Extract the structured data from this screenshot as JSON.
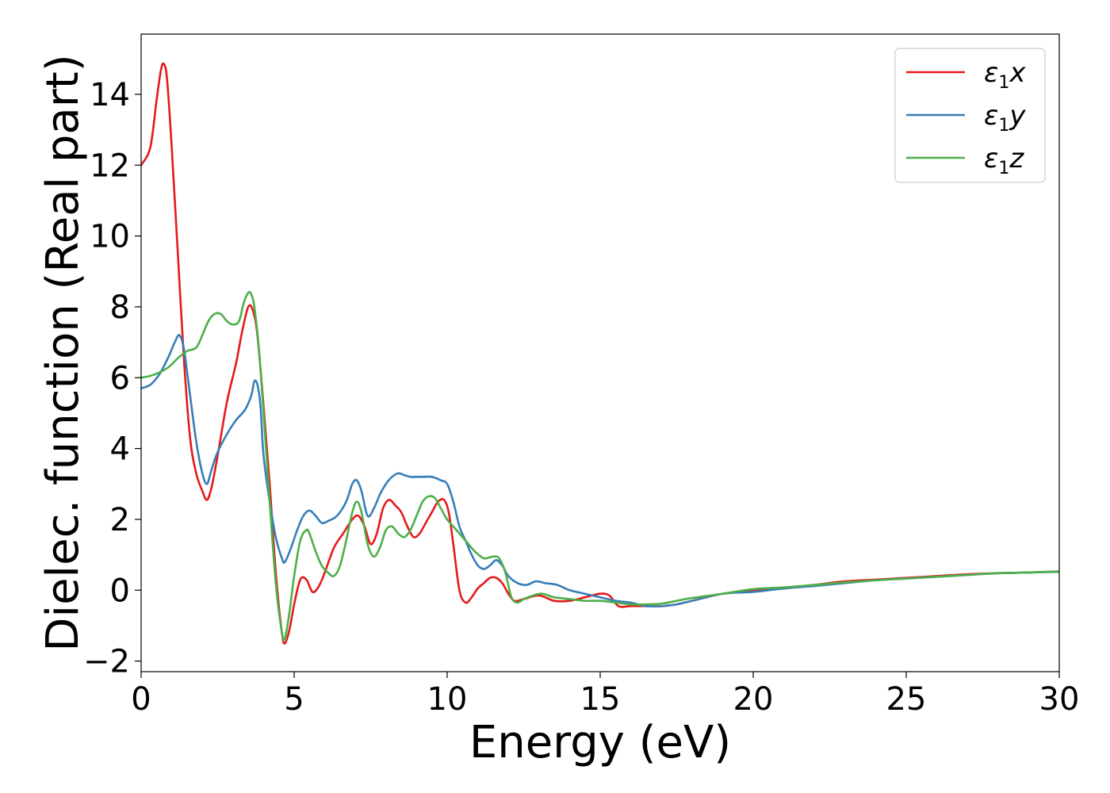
{
  "chart_data": {
    "type": "line",
    "title": "",
    "xlabel": "Energy (eV)",
    "ylabel": "Dielec. function (Real part)",
    "xlim": [
      0,
      30
    ],
    "ylim": [
      -2.3,
      15.7
    ],
    "xticks": [
      0,
      5,
      10,
      15,
      20,
      25,
      30
    ],
    "yticks": [
      -2,
      0,
      2,
      4,
      6,
      8,
      10,
      12,
      14
    ],
    "ytick_labels": [
      "−2",
      "0",
      "2",
      "4",
      "6",
      "8",
      "10",
      "12",
      "14"
    ],
    "grid": false,
    "legend_position": "top-right",
    "series": [
      {
        "name": "ε1x",
        "name_base": "ε",
        "name_sub": "1",
        "name_tail": "x",
        "color": "#e41a1c",
        "x": [
          0,
          0.3,
          0.5,
          0.65,
          0.75,
          0.85,
          1.0,
          1.2,
          1.4,
          1.6,
          1.8,
          2.0,
          2.15,
          2.3,
          2.5,
          2.8,
          3.1,
          3.3,
          3.5,
          3.65,
          3.8,
          4.0,
          4.2,
          4.4,
          4.6,
          4.7,
          4.85,
          5.0,
          5.2,
          5.4,
          5.6,
          5.8,
          6.0,
          6.3,
          6.6,
          6.9,
          7.1,
          7.3,
          7.5,
          7.7,
          7.9,
          8.1,
          8.3,
          8.5,
          8.7,
          8.9,
          9.1,
          9.3,
          9.5,
          9.7,
          9.9,
          10.05,
          10.2,
          10.4,
          10.6,
          10.8,
          11.0,
          11.2,
          11.4,
          11.6,
          11.8,
          12.0,
          12.2,
          12.5,
          13.0,
          13.5,
          14.0,
          14.5,
          15.0,
          15.3,
          15.6,
          16.0,
          16.5,
          17.0,
          17.5,
          18.0,
          19.0,
          20.0,
          21.0,
          22.0,
          23.0,
          24.0,
          25.0,
          26.0,
          27.0,
          28.0,
          29.0,
          30.0
        ],
        "y": [
          12.0,
          12.5,
          13.8,
          14.7,
          14.85,
          14.4,
          12.5,
          9.5,
          6.5,
          4.3,
          3.3,
          2.8,
          2.55,
          2.9,
          3.8,
          5.3,
          6.4,
          7.3,
          8.0,
          7.9,
          7.2,
          5.2,
          3.0,
          0.5,
          -1.2,
          -1.5,
          -1.1,
          -0.4,
          0.3,
          0.3,
          -0.05,
          0.1,
          0.5,
          1.2,
          1.6,
          2.0,
          2.1,
          1.8,
          1.3,
          1.6,
          2.3,
          2.55,
          2.4,
          2.2,
          1.8,
          1.5,
          1.6,
          1.9,
          2.2,
          2.5,
          2.55,
          2.2,
          1.3,
          0.0,
          -0.35,
          -0.2,
          0.05,
          0.2,
          0.35,
          0.35,
          0.2,
          -0.1,
          -0.3,
          -0.25,
          -0.15,
          -0.3,
          -0.3,
          -0.2,
          -0.1,
          -0.15,
          -0.45,
          -0.45,
          -0.45,
          -0.45,
          -0.4,
          -0.3,
          -0.1,
          -0.02,
          0.05,
          0.15,
          0.25,
          0.3,
          0.35,
          0.4,
          0.45,
          0.48,
          0.5,
          0.53
        ]
      },
      {
        "name": "ε1y",
        "name_base": "ε",
        "name_sub": "1",
        "name_tail": "y",
        "color": "#377eb8",
        "x": [
          0,
          0.3,
          0.6,
          0.9,
          1.1,
          1.25,
          1.4,
          1.6,
          1.8,
          2.0,
          2.15,
          2.3,
          2.5,
          2.8,
          3.1,
          3.4,
          3.6,
          3.7,
          3.8,
          3.9,
          4.0,
          4.2,
          4.4,
          4.6,
          4.7,
          4.9,
          5.1,
          5.3,
          5.5,
          5.7,
          5.9,
          6.1,
          6.4,
          6.7,
          6.9,
          7.05,
          7.2,
          7.4,
          7.6,
          7.8,
          8.0,
          8.2,
          8.4,
          8.6,
          8.8,
          9.0,
          9.2,
          9.5,
          9.8,
          10.0,
          10.2,
          10.4,
          10.6,
          10.8,
          11.0,
          11.2,
          11.4,
          11.6,
          11.8,
          12.0,
          12.3,
          12.6,
          12.9,
          13.2,
          13.6,
          14.0,
          14.5,
          15.0,
          15.5,
          16.0,
          16.5,
          17.0,
          17.5,
          18.0,
          19.0,
          20.0,
          21.0,
          22.0,
          23.0,
          24.0,
          25.0,
          26.0,
          27.0,
          28.0,
          29.0,
          30.0
        ],
        "y": [
          5.7,
          5.8,
          6.1,
          6.6,
          7.0,
          7.2,
          6.8,
          5.5,
          4.2,
          3.3,
          3.0,
          3.4,
          3.9,
          4.4,
          4.8,
          5.1,
          5.5,
          5.9,
          5.8,
          5.2,
          3.8,
          2.5,
          1.5,
          0.9,
          0.8,
          1.2,
          1.7,
          2.1,
          2.25,
          2.1,
          1.9,
          1.95,
          2.1,
          2.5,
          3.0,
          3.1,
          2.8,
          2.1,
          2.3,
          2.7,
          3.0,
          3.2,
          3.3,
          3.25,
          3.2,
          3.2,
          3.2,
          3.2,
          3.1,
          3.0,
          2.5,
          1.8,
          1.4,
          1.0,
          0.7,
          0.6,
          0.7,
          0.85,
          0.7,
          0.4,
          0.2,
          0.15,
          0.25,
          0.2,
          0.15,
          0.0,
          -0.1,
          -0.2,
          -0.3,
          -0.35,
          -0.45,
          -0.45,
          -0.4,
          -0.3,
          -0.1,
          -0.05,
          0.05,
          0.12,
          0.2,
          0.28,
          0.33,
          0.38,
          0.43,
          0.48,
          0.5,
          0.52
        ]
      },
      {
        "name": "ε1z",
        "name_base": "ε",
        "name_sub": "1",
        "name_tail": "z",
        "color": "#4daf4a",
        "x": [
          0,
          0.3,
          0.6,
          0.9,
          1.2,
          1.5,
          1.8,
          2.0,
          2.2,
          2.4,
          2.6,
          2.8,
          3.0,
          3.2,
          3.35,
          3.5,
          3.6,
          3.7,
          3.85,
          4.0,
          4.2,
          4.4,
          4.6,
          4.7,
          4.85,
          5.0,
          5.2,
          5.4,
          5.5,
          5.7,
          5.9,
          6.1,
          6.3,
          6.5,
          6.7,
          6.9,
          7.05,
          7.2,
          7.4,
          7.6,
          7.8,
          8.0,
          8.2,
          8.4,
          8.6,
          8.8,
          9.0,
          9.2,
          9.4,
          9.6,
          9.8,
          10.0,
          10.3,
          10.6,
          10.9,
          11.2,
          11.5,
          11.7,
          11.9,
          12.1,
          12.3,
          12.5,
          12.8,
          13.1,
          13.5,
          14.0,
          14.5,
          15.0,
          15.5,
          16.0,
          16.5,
          17.0,
          17.5,
          18.0,
          19.0,
          20.0,
          21.0,
          22.0,
          23.0,
          24.0,
          25.0,
          26.0,
          27.0,
          28.0,
          29.0,
          30.0
        ],
        "y": [
          6.0,
          6.05,
          6.15,
          6.3,
          6.55,
          6.75,
          6.85,
          7.2,
          7.6,
          7.8,
          7.8,
          7.6,
          7.5,
          7.6,
          8.1,
          8.4,
          8.35,
          8.0,
          6.8,
          5.0,
          2.5,
          0.2,
          -1.2,
          -1.35,
          -0.6,
          0.4,
          1.4,
          1.7,
          1.6,
          1.1,
          0.7,
          0.5,
          0.4,
          0.7,
          1.4,
          2.2,
          2.5,
          2.2,
          1.3,
          0.95,
          1.2,
          1.7,
          1.8,
          1.6,
          1.5,
          1.7,
          2.1,
          2.5,
          2.65,
          2.6,
          2.3,
          2.0,
          1.7,
          1.4,
          1.1,
          0.9,
          0.95,
          0.9,
          0.5,
          -0.2,
          -0.35,
          -0.25,
          -0.15,
          -0.1,
          -0.2,
          -0.25,
          -0.3,
          -0.3,
          -0.35,
          -0.4,
          -0.4,
          -0.38,
          -0.3,
          -0.22,
          -0.1,
          0.03,
          0.08,
          0.15,
          0.22,
          0.28,
          0.33,
          0.38,
          0.43,
          0.48,
          0.5,
          0.53
        ]
      }
    ]
  }
}
